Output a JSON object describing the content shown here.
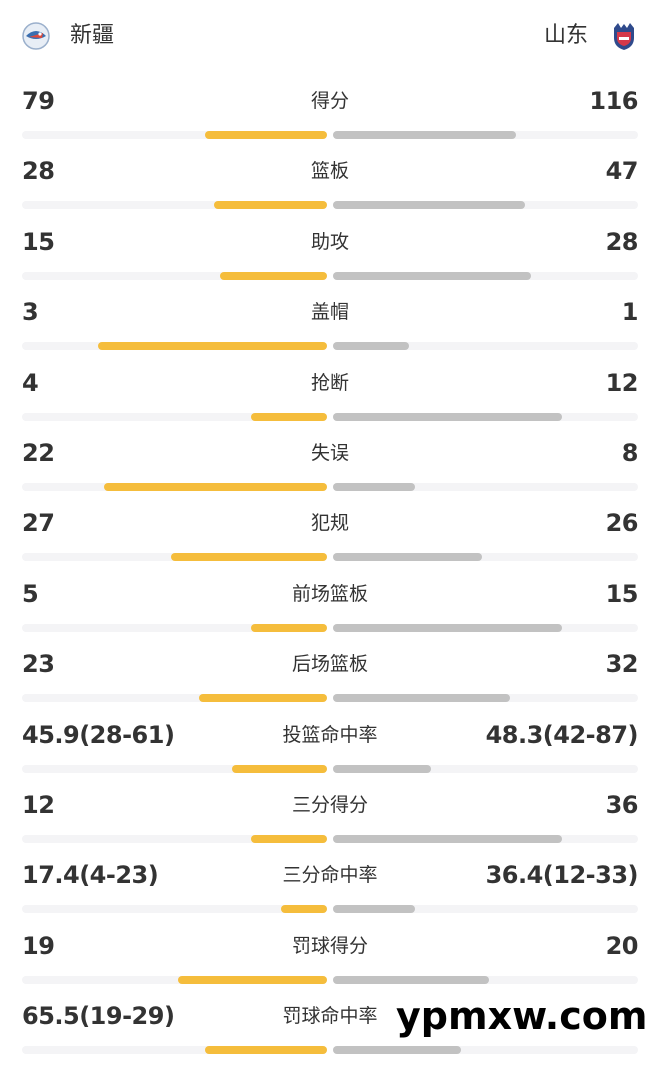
{
  "header": {
    "home_team": "新疆",
    "away_team": "山东",
    "home_logo_icon": "xinjiang-team-logo-icon",
    "away_logo_icon": "shandong-team-logo-icon"
  },
  "colors": {
    "home_bar": "#f5bd3c",
    "away_bar": "#c2c2c2",
    "track": "#f4f4f6"
  },
  "stats": [
    {
      "label": "得分",
      "home": "79",
      "away": "116",
      "home_bar": 0.4,
      "away_bar": 0.6
    },
    {
      "label": "篮板",
      "home": "28",
      "away": "47",
      "home_bar": 0.37,
      "away_bar": 0.63
    },
    {
      "label": "助攻",
      "home": "15",
      "away": "28",
      "home_bar": 0.35,
      "away_bar": 0.65
    },
    {
      "label": "盖帽",
      "home": "3",
      "away": "1",
      "home_bar": 0.75,
      "away_bar": 0.25
    },
    {
      "label": "抢断",
      "home": "4",
      "away": "12",
      "home_bar": 0.25,
      "away_bar": 0.75
    },
    {
      "label": "失误",
      "home": "22",
      "away": "8",
      "home_bar": 0.73,
      "away_bar": 0.27
    },
    {
      "label": "犯规",
      "home": "27",
      "away": "26",
      "home_bar": 0.51,
      "away_bar": 0.49
    },
    {
      "label": "前场篮板",
      "home": "5",
      "away": "15",
      "home_bar": 0.25,
      "away_bar": 0.75
    },
    {
      "label": "后场篮板",
      "home": "23",
      "away": "32",
      "home_bar": 0.42,
      "away_bar": 0.58
    },
    {
      "label": "投篮命中率",
      "home": "45.9(28-61)",
      "away": "48.3(42-87)",
      "home_bar": 0.31,
      "away_bar": 0.32
    },
    {
      "label": "三分得分",
      "home": "12",
      "away": "36",
      "home_bar": 0.25,
      "away_bar": 0.75
    },
    {
      "label": "三分命中率",
      "home": "17.4(4-23)",
      "away": "36.4(12-33)",
      "home_bar": 0.15,
      "away_bar": 0.27
    },
    {
      "label": "罚球得分",
      "home": "19",
      "away": "20",
      "home_bar": 0.49,
      "away_bar": 0.51
    },
    {
      "label": "罚球命中率",
      "home": "65.5(19-29)",
      "away": "",
      "home_bar": 0.4,
      "away_bar": 0.42
    }
  ],
  "watermark": "ypmxw.com"
}
